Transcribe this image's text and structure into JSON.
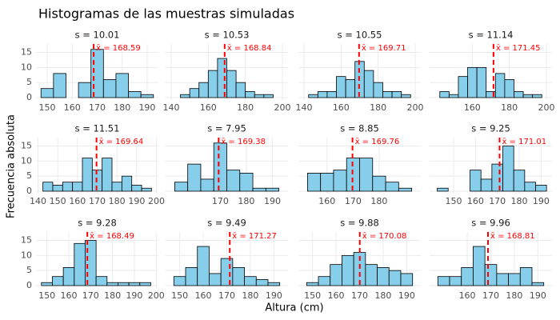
{
  "title": "Histogramas de las muestras simuladas",
  "x_label": "Altura (cm)",
  "y_label": "Frecuencia absoluta",
  "chart_data": [
    {
      "type": "histogram",
      "subtitle": "s = 10.01",
      "bins": [
        147.5,
        152.5,
        157.5,
        162.5,
        167.5,
        172.5,
        177.5,
        182.5,
        187.5,
        192.5
      ],
      "values": [
        3,
        8,
        0,
        5,
        16,
        6,
        8,
        2,
        1
      ],
      "xlim": [
        145.5,
        194.5
      ],
      "xticks": [
        150,
        160,
        170,
        180,
        190
      ],
      "ylim": [
        -0.8,
        17.8
      ],
      "yticks": [
        0,
        5,
        10,
        15
      ],
      "mean": {
        "value": 168.59,
        "label": "x̄ = 168.59"
      },
      "color": "#87ceeb",
      "mean_color": "#ff0000",
      "grid": true
    },
    {
      "type": "histogram",
      "subtitle": "s = 10.53",
      "bins": [
        145,
        150,
        155,
        160,
        165,
        170,
        175,
        180,
        185,
        190,
        195
      ],
      "values": [
        1,
        3,
        5,
        9,
        13,
        9,
        5,
        2,
        1,
        1
      ],
      "xlim": [
        137,
        203
      ],
      "xticks": [
        140,
        160,
        180,
        200
      ],
      "ylim": [
        -0.8,
        17.8
      ],
      "yticks": [
        0,
        5,
        10,
        15
      ],
      "mean": {
        "value": 168.84,
        "label": "x̄ = 168.84"
      },
      "color": "#87ceeb",
      "mean_color": "#ff0000",
      "grid": true
    },
    {
      "type": "histogram",
      "subtitle": "s = 10.55",
      "bins": [
        142.5,
        147.5,
        152.5,
        157.5,
        162.5,
        167.5,
        172.5,
        177.5,
        182.5,
        187.5,
        192.5,
        197.5
      ],
      "values": [
        1,
        2,
        2,
        7,
        6,
        12,
        9,
        5,
        2,
        2,
        1
      ],
      "xlim": [
        137,
        203
      ],
      "xticks": [
        140,
        160,
        180,
        200
      ],
      "ylim": [
        -0.8,
        17.8
      ],
      "yticks": [
        0,
        5,
        10,
        15
      ],
      "mean": {
        "value": 169.71,
        "label": "x̄ = 169.71"
      },
      "color": "#87ceeb",
      "mean_color": "#ff0000",
      "grid": true
    },
    {
      "type": "histogram",
      "subtitle": "s = 11.14",
      "bins": [
        142.5,
        147.5,
        152.5,
        157.5,
        162.5,
        167.5,
        172.5,
        177.5,
        182.5,
        187.5,
        192.5,
        197.5
      ],
      "values": [
        2,
        1,
        7,
        10,
        10,
        2,
        8,
        6,
        2,
        1,
        1
      ],
      "xlim": [
        137,
        203
      ],
      "xticks": [
        160,
        180,
        200
      ],
      "ylim": [
        -0.8,
        17.8
      ],
      "yticks": [
        0,
        5,
        10,
        15
      ],
      "mean": {
        "value": 171.45,
        "label": "x̄ = 171.45"
      },
      "color": "#87ceeb",
      "mean_color": "#ff0000",
      "grid": true
    },
    {
      "type": "histogram",
      "subtitle": "s = 11.51",
      "bins": [
        142.5,
        147.5,
        152.5,
        157.5,
        162.5,
        167.5,
        172.5,
        177.5,
        182.5,
        187.5,
        192.5,
        197.5
      ],
      "values": [
        3,
        2,
        3,
        3,
        11,
        7,
        11,
        3,
        5,
        2,
        1
      ],
      "xlim": [
        139,
        201
      ],
      "xticks": [
        140,
        150,
        160,
        170,
        180,
        190,
        200
      ],
      "ylim": [
        -0.8,
        17.8
      ],
      "yticks": [
        0,
        5,
        10,
        15
      ],
      "mean": {
        "value": 169.64,
        "label": "x̄ = 169.64"
      },
      "color": "#87ceeb",
      "mean_color": "#ff0000",
      "grid": true
    },
    {
      "type": "histogram",
      "subtitle": "s = 7.95",
      "bins": [
        152.5,
        157.5,
        162.5,
        167.5,
        172.5,
        177.5,
        182.5,
        187.5,
        192.5
      ],
      "values": [
        3,
        9,
        4,
        16,
        7,
        6,
        1,
        1
      ],
      "xlim": [
        149,
        196
      ],
      "xticks": [
        170,
        180,
        190
      ],
      "ylim": [
        -0.8,
        17.8
      ],
      "yticks": [
        0,
        5,
        10,
        15
      ],
      "mean": {
        "value": 169.38,
        "label": "x̄ = 169.38"
      },
      "color": "#87ceeb",
      "mean_color": "#ff0000",
      "grid": true
    },
    {
      "type": "histogram",
      "subtitle": "s = 8.85",
      "bins": [
        152.5,
        157.5,
        162.5,
        167.5,
        172.5,
        177.5,
        182.5,
        187.5,
        192.5
      ],
      "values": [
        6,
        6,
        7,
        11,
        11,
        5,
        3,
        1
      ],
      "xlim": [
        149,
        196
      ],
      "xticks": [
        160,
        170,
        180
      ],
      "ylim": [
        -0.8,
        17.8
      ],
      "yticks": [
        0,
        5,
        10,
        15
      ],
      "mean": {
        "value": 169.76,
        "label": "x̄ = 169.76"
      },
      "color": "#87ceeb",
      "mean_color": "#ff0000",
      "grid": true
    },
    {
      "type": "histogram",
      "subtitle": "s = 9.25",
      "bins": [
        142.5,
        147.5,
        152.5,
        157.5,
        162.5,
        167.5,
        172.5,
        177.5,
        182.5,
        187.5,
        192.5
      ],
      "values": [
        1,
        0,
        0,
        7,
        4,
        9,
        15,
        7,
        3,
        2
      ],
      "xlim": [
        139,
        195
      ],
      "xticks": [
        150,
        160,
        170,
        180,
        190
      ],
      "ylim": [
        -0.8,
        17.8
      ],
      "yticks": [
        0,
        5,
        10,
        15
      ],
      "mean": {
        "value": 171.01,
        "label": "x̄ = 171.01"
      },
      "color": "#87ceeb",
      "mean_color": "#ff0000",
      "grid": true
    },
    {
      "type": "histogram",
      "subtitle": "s = 9.28",
      "bins": [
        147.5,
        152.5,
        157.5,
        162.5,
        167.5,
        172.5,
        177.5,
        182.5,
        187.5,
        192.5,
        197.5
      ],
      "values": [
        1,
        3,
        6,
        14,
        15,
        3,
        1,
        1,
        1,
        1
      ],
      "xlim": [
        145,
        201
      ],
      "xticks": [
        150,
        160,
        170,
        180,
        190,
        200
      ],
      "ylim": [
        -0.8,
        17.8
      ],
      "yticks": [
        0,
        5,
        10,
        15
      ],
      "mean": {
        "value": 168.49,
        "label": "x̄ = 168.49"
      },
      "color": "#87ceeb",
      "mean_color": "#ff0000",
      "grid": true
    },
    {
      "type": "histogram",
      "subtitle": "s = 9.49",
      "bins": [
        147.5,
        152.5,
        157.5,
        162.5,
        167.5,
        172.5,
        177.5,
        182.5,
        187.5,
        192.5
      ],
      "values": [
        3,
        6,
        13,
        4,
        9,
        6,
        3,
        2,
        1
      ],
      "xlim": [
        144,
        196
      ],
      "xticks": [
        150,
        160,
        170,
        180,
        190
      ],
      "ylim": [
        -0.8,
        17.8
      ],
      "yticks": [
        0,
        5,
        10,
        15
      ],
      "mean": {
        "value": 171.27,
        "label": "x̄ = 171.27"
      },
      "color": "#87ceeb",
      "mean_color": "#ff0000",
      "grid": true
    },
    {
      "type": "histogram",
      "subtitle": "s = 9.88",
      "bins": [
        147.5,
        152.5,
        157.5,
        162.5,
        167.5,
        172.5,
        177.5,
        182.5,
        187.5,
        192.5
      ],
      "values": [
        1,
        3,
        7,
        10,
        11,
        7,
        6,
        5,
        4
      ],
      "xlim": [
        144,
        196
      ],
      "xticks": [
        150,
        160,
        170,
        180,
        190
      ],
      "ylim": [
        -0.8,
        17.8
      ],
      "yticks": [
        0,
        5,
        10,
        15
      ],
      "mean": {
        "value": 170.08,
        "label": "x̄ = 170.08"
      },
      "color": "#87ceeb",
      "mean_color": "#ff0000",
      "grid": true
    },
    {
      "type": "histogram",
      "subtitle": "s = 9.96",
      "bins": [
        147.5,
        152.5,
        157.5,
        162.5,
        167.5,
        172.5,
        177.5,
        182.5,
        187.5,
        192.5
      ],
      "values": [
        3,
        3,
        6,
        13,
        7,
        4,
        4,
        6,
        1
      ],
      "xlim": [
        144,
        196
      ],
      "xticks": [
        160,
        170,
        180,
        190
      ],
      "ylim": [
        -0.8,
        17.8
      ],
      "yticks": [
        0,
        5,
        10,
        15
      ],
      "mean": {
        "value": 168.81,
        "label": "x̄ = 168.81"
      },
      "color": "#87ceeb",
      "mean_color": "#ff0000",
      "grid": true
    }
  ]
}
